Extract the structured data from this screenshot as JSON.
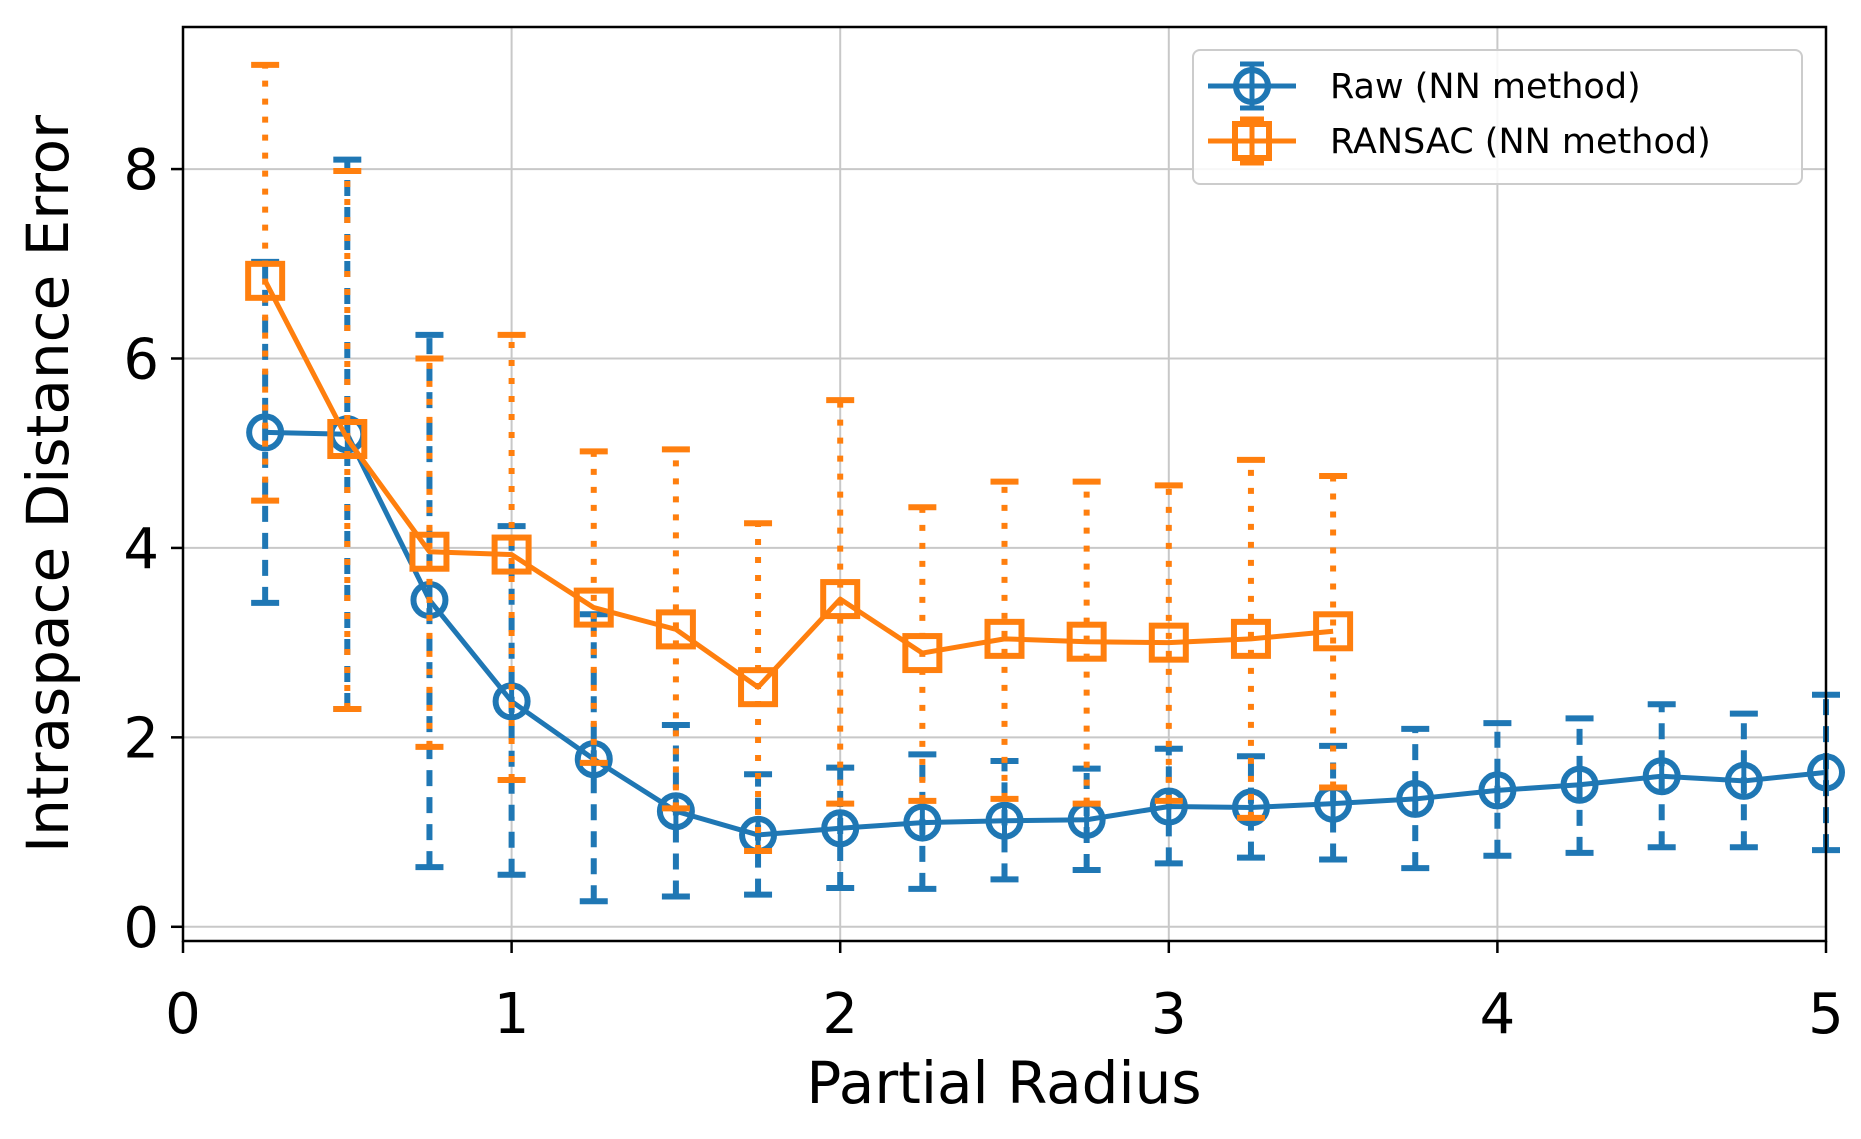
{
  "chart_data": {
    "type": "line",
    "title": "",
    "xlabel": "Partial Radius",
    "ylabel": "Intraspace Distance Error",
    "xlim": [
      0,
      5
    ],
    "ylim": [
      -0.15,
      9.5
    ],
    "xticks": [
      {
        "value": 0,
        "label": "0"
      },
      {
        "value": 1,
        "label": "1"
      },
      {
        "value": 2,
        "label": "2"
      },
      {
        "value": 3,
        "label": "3"
      },
      {
        "value": 4,
        "label": "4"
      },
      {
        "value": 5,
        "label": "5"
      }
    ],
    "yticks": [
      {
        "value": 0,
        "label": "0"
      },
      {
        "value": 2,
        "label": "2"
      },
      {
        "value": 4,
        "label": "4"
      },
      {
        "value": 6,
        "label": "6"
      },
      {
        "value": 8,
        "label": "8"
      }
    ],
    "grid": true,
    "legend_position": "top-right",
    "series": [
      {
        "name": "Raw (NN method)",
        "color": "#1f77b4",
        "marker": "circle",
        "errorbar_style": "dashed",
        "x": [
          0.25,
          0.5,
          0.75,
          1.0,
          1.25,
          1.5,
          1.75,
          2.0,
          2.25,
          2.5,
          2.75,
          3.0,
          3.25,
          3.5,
          3.75,
          4.0,
          4.25,
          4.5,
          4.75,
          5.0
        ],
        "y": [
          5.22,
          5.2,
          3.45,
          2.38,
          1.77,
          1.22,
          0.97,
          1.04,
          1.1,
          1.12,
          1.13,
          1.27,
          1.26,
          1.3,
          1.35,
          1.44,
          1.5,
          1.59,
          1.54,
          1.63
        ],
        "err_low": [
          3.42,
          2.3,
          0.63,
          0.55,
          0.27,
          0.32,
          0.34,
          0.41,
          0.4,
          0.5,
          0.6,
          0.67,
          0.73,
          0.71,
          0.62,
          0.75,
          0.78,
          0.84,
          0.84,
          0.81
        ],
        "err_high": [
          7.02,
          8.1,
          6.25,
          4.23,
          3.3,
          2.13,
          1.61,
          1.68,
          1.82,
          1.75,
          1.67,
          1.88,
          1.8,
          1.91,
          2.09,
          2.15,
          2.2,
          2.35,
          2.25,
          2.45
        ]
      },
      {
        "name": "RANSAC (NN method)",
        "color": "#ff7f0e",
        "marker": "square",
        "errorbar_style": "dotted",
        "x": [
          0.25,
          0.5,
          0.75,
          1.0,
          1.25,
          1.5,
          1.75,
          2.0,
          2.25,
          2.5,
          2.75,
          3.0,
          3.25,
          3.5
        ],
        "y": [
          6.82,
          5.15,
          3.96,
          3.93,
          3.37,
          3.14,
          2.53,
          3.46,
          2.89,
          3.04,
          3.01,
          3.0,
          3.04,
          3.12
        ],
        "err_low": [
          4.5,
          2.3,
          1.9,
          1.55,
          1.73,
          1.25,
          0.8,
          1.3,
          1.33,
          1.35,
          1.3,
          1.33,
          1.15,
          1.47
        ],
        "err_high": [
          9.1,
          7.98,
          6.0,
          6.25,
          5.02,
          5.04,
          4.26,
          5.56,
          4.43,
          4.7,
          4.7,
          4.66,
          4.93,
          4.76
        ]
      }
    ]
  }
}
